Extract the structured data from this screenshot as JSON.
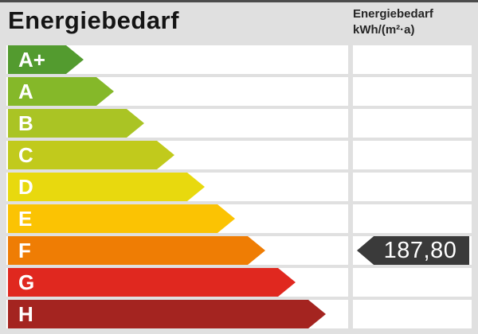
{
  "title": "Energiebedarf",
  "unit_header": {
    "line1": "Energiebedarf",
    "line2": "kWh/(m²·a)"
  },
  "badge": {
    "value": "187,80",
    "band": "F",
    "bg_color": "#3a3a3a",
    "text_color": "#ffffff"
  },
  "scale": [
    {
      "label": "A+",
      "color": "#539b2f",
      "arrow_width": 95
    },
    {
      "label": "A",
      "color": "#85b829",
      "arrow_width": 133
    },
    {
      "label": "B",
      "color": "#aac424",
      "arrow_width": 171
    },
    {
      "label": "C",
      "color": "#c1ca1c",
      "arrow_width": 209
    },
    {
      "label": "D",
      "color": "#e8d90e",
      "arrow_width": 247
    },
    {
      "label": "E",
      "color": "#fbc303",
      "arrow_width": 285
    },
    {
      "label": "F",
      "color": "#ef7d04",
      "arrow_width": 323
    },
    {
      "label": "G",
      "color": "#e0281f",
      "arrow_width": 361
    },
    {
      "label": "H",
      "color": "#a42420",
      "arrow_width": 399
    }
  ],
  "chart_data": {
    "type": "bar",
    "orientation": "horizontal",
    "title": "Energiebedarf",
    "unit": "kWh/(m²·a)",
    "categories": [
      "A+",
      "A",
      "B",
      "C",
      "D",
      "E",
      "F",
      "G",
      "H"
    ],
    "values": [
      95,
      133,
      171,
      209,
      247,
      285,
      323,
      361,
      399
    ],
    "colors": [
      "#539b2f",
      "#85b829",
      "#aac424",
      "#c1ca1c",
      "#e8d90e",
      "#fbc303",
      "#ef7d04",
      "#e0281f",
      "#a42420"
    ],
    "legend_position": "none",
    "grid": false,
    "marker": {
      "value": 187.8,
      "display": "187,80",
      "band": "F"
    }
  }
}
